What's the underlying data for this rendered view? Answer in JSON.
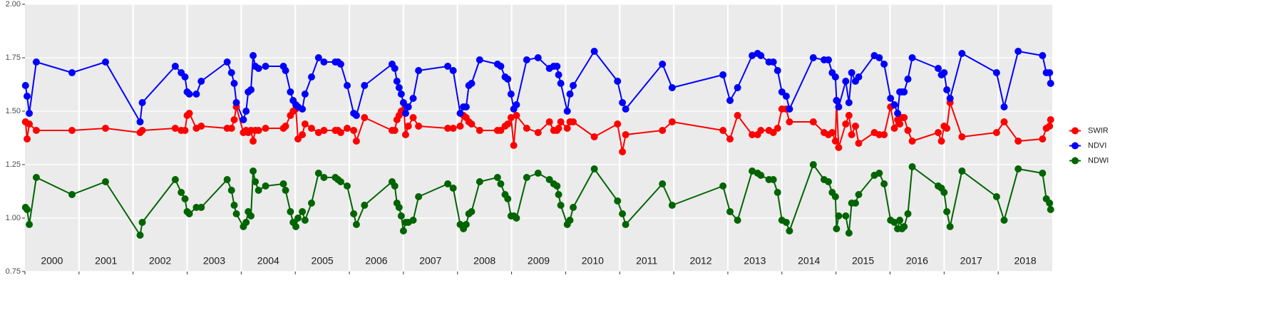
{
  "chart_data": {
    "type": "line",
    "x": [
      2000.01,
      2000.04,
      2000.08,
      2000.21,
      2000.87,
      2001.49,
      2002.13,
      2002.17,
      2002.78,
      2002.89,
      2002.96,
      2003.0,
      2003.04,
      2003.17,
      2003.26,
      2003.74,
      2003.82,
      2003.87,
      2003.91,
      2004.04,
      2004.09,
      2004.13,
      2004.18,
      2004.22,
      2004.26,
      2004.32,
      2004.45,
      2004.78,
      2004.82,
      2004.91,
      2004.96,
      2005.01,
      2005.05,
      2005.13,
      2005.18,
      2005.3,
      2005.43,
      2005.53,
      2005.74,
      2005.79,
      2005.84,
      2005.96,
      2006.08,
      2006.13,
      2006.28,
      2006.79,
      2006.84,
      2006.88,
      2006.92,
      2006.96,
      2007.0,
      2007.04,
      2007.09,
      2007.18,
      2007.28,
      2007.82,
      2007.92,
      2008.05,
      2008.11,
      2008.16,
      2008.21,
      2008.26,
      2008.41,
      2008.74,
      2008.8,
      2008.88,
      2008.93,
      2008.99,
      2009.04,
      2009.09,
      2009.28,
      2009.49,
      2009.7,
      2009.78,
      2009.84,
      2009.87,
      2009.91,
      2010.03,
      2010.08,
      2010.14,
      2010.53,
      2010.96,
      2011.05,
      2011.11,
      2011.79,
      2011.97,
      2012.91,
      2013.04,
      2013.18,
      2013.45,
      2013.55,
      2013.61,
      2013.76,
      2013.84,
      2013.92,
      2014.0,
      2014.08,
      2014.14,
      2014.58,
      2014.78,
      2014.86,
      2014.93,
      2014.99,
      2015.01,
      2015.05,
      2015.18,
      2015.24,
      2015.29,
      2015.36,
      2015.42,
      2015.71,
      2015.8,
      2015.89,
      2016.01,
      2016.08,
      2016.14,
      2016.18,
      2016.22,
      2016.26,
      2016.33,
      2016.41,
      2016.89,
      2016.95,
      2017.0,
      2017.05,
      2017.11,
      2017.33,
      2017.97,
      2018.11,
      2018.37,
      2018.82,
      2018.89,
      2018.95,
      2018.97
    ],
    "series": [
      {
        "name": "SWIR",
        "color": "#ff0000",
        "values": [
          1.45,
          1.37,
          1.44,
          1.41,
          1.41,
          1.42,
          1.4,
          1.41,
          1.42,
          1.41,
          1.41,
          1.48,
          1.49,
          1.42,
          1.43,
          1.42,
          1.42,
          1.46,
          1.52,
          1.4,
          1.41,
          1.4,
          1.41,
          1.36,
          1.41,
          1.41,
          1.42,
          1.42,
          1.43,
          1.48,
          1.5,
          1.51,
          1.37,
          1.39,
          1.44,
          1.42,
          1.4,
          1.41,
          1.41,
          1.41,
          1.4,
          1.42,
          1.41,
          1.36,
          1.47,
          1.41,
          1.41,
          1.46,
          1.48,
          1.5,
          1.54,
          1.39,
          1.43,
          1.47,
          1.43,
          1.42,
          1.42,
          1.43,
          1.48,
          1.47,
          1.45,
          1.44,
          1.41,
          1.41,
          1.41,
          1.43,
          1.44,
          1.47,
          1.34,
          1.48,
          1.42,
          1.4,
          1.45,
          1.41,
          1.41,
          1.42,
          1.45,
          1.42,
          1.45,
          1.45,
          1.38,
          1.44,
          1.31,
          1.39,
          1.41,
          1.45,
          1.41,
          1.37,
          1.48,
          1.39,
          1.39,
          1.41,
          1.41,
          1.4,
          1.42,
          1.51,
          1.51,
          1.45,
          1.45,
          1.4,
          1.39,
          1.4,
          1.36,
          1.55,
          1.33,
          1.44,
          1.48,
          1.39,
          1.43,
          1.35,
          1.4,
          1.39,
          1.39,
          1.52,
          1.42,
          1.46,
          1.44,
          1.47,
          1.47,
          1.41,
          1.36,
          1.4,
          1.36,
          1.43,
          1.42,
          1.54,
          1.38,
          1.4,
          1.45,
          1.36,
          1.37,
          1.42,
          1.43,
          1.46
        ]
      },
      {
        "name": "NDVI",
        "color": "#0000ff",
        "values": [
          1.62,
          1.57,
          1.49,
          1.73,
          1.68,
          1.73,
          1.45,
          1.54,
          1.71,
          1.68,
          1.66,
          1.59,
          1.58,
          1.58,
          1.64,
          1.73,
          1.68,
          1.63,
          1.54,
          1.46,
          1.5,
          1.59,
          1.6,
          1.76,
          1.71,
          1.7,
          1.71,
          1.71,
          1.69,
          1.59,
          1.55,
          1.53,
          1.52,
          1.51,
          1.58,
          1.66,
          1.75,
          1.73,
          1.73,
          1.73,
          1.72,
          1.62,
          1.49,
          1.48,
          1.62,
          1.72,
          1.7,
          1.64,
          1.61,
          1.58,
          1.54,
          1.49,
          1.52,
          1.56,
          1.69,
          1.71,
          1.69,
          1.49,
          1.52,
          1.52,
          1.62,
          1.63,
          1.74,
          1.72,
          1.71,
          1.66,
          1.65,
          1.58,
          1.51,
          1.53,
          1.74,
          1.75,
          1.7,
          1.71,
          1.71,
          1.67,
          1.63,
          1.5,
          1.58,
          1.62,
          1.78,
          1.64,
          1.54,
          1.51,
          1.72,
          1.61,
          1.67,
          1.55,
          1.61,
          1.76,
          1.77,
          1.76,
          1.73,
          1.73,
          1.69,
          1.59,
          1.57,
          1.51,
          1.75,
          1.74,
          1.74,
          1.68,
          1.66,
          1.55,
          1.52,
          1.64,
          1.54,
          1.68,
          1.64,
          1.66,
          1.76,
          1.75,
          1.72,
          1.56,
          1.53,
          1.49,
          1.59,
          1.59,
          1.59,
          1.65,
          1.75,
          1.7,
          1.67,
          1.68,
          1.6,
          1.56,
          1.77,
          1.68,
          1.52,
          1.78,
          1.76,
          1.68,
          1.68,
          1.63
        ]
      },
      {
        "name": "NDWI",
        "color": "#006400",
        "values": [
          1.05,
          1.04,
          0.97,
          1.19,
          1.11,
          1.17,
          0.92,
          0.98,
          1.18,
          1.12,
          1.09,
          1.03,
          1.02,
          1.05,
          1.05,
          1.18,
          1.13,
          1.06,
          1.02,
          0.96,
          0.98,
          1.03,
          1.01,
          1.22,
          1.17,
          1.13,
          1.15,
          1.16,
          1.13,
          1.03,
          0.98,
          0.96,
          1.0,
          1.03,
          0.99,
          1.07,
          1.21,
          1.19,
          1.19,
          1.18,
          1.17,
          1.15,
          1.02,
          0.97,
          1.06,
          1.17,
          1.15,
          1.07,
          1.05,
          1.01,
          0.94,
          0.98,
          0.98,
          0.99,
          1.1,
          1.16,
          1.14,
          0.97,
          0.95,
          0.97,
          1.02,
          1.03,
          1.17,
          1.19,
          1.16,
          1.11,
          1.09,
          1.01,
          1.01,
          1.0,
          1.19,
          1.21,
          1.18,
          1.16,
          1.15,
          1.11,
          1.06,
          0.97,
          0.99,
          1.05,
          1.23,
          1.08,
          1.02,
          0.97,
          1.16,
          1.06,
          1.15,
          1.03,
          0.99,
          1.22,
          1.21,
          1.2,
          1.18,
          1.18,
          1.12,
          0.99,
          0.98,
          0.94,
          1.25,
          1.18,
          1.17,
          1.12,
          1.1,
          0.95,
          1.01,
          1.01,
          0.93,
          1.07,
          1.07,
          1.11,
          1.2,
          1.21,
          1.16,
          0.99,
          0.98,
          0.95,
          0.99,
          0.95,
          0.96,
          1.02,
          1.24,
          1.15,
          1.14,
          1.12,
          1.03,
          0.96,
          1.22,
          1.1,
          0.99,
          1.23,
          1.21,
          1.09,
          1.07,
          1.04
        ]
      }
    ],
    "xlim": [
      2000,
      2019
    ],
    "xticks": [
      2000,
      2001,
      2002,
      2003,
      2004,
      2005,
      2006,
      2007,
      2008,
      2009,
      2010,
      2011,
      2012,
      2013,
      2014,
      2015,
      2016,
      2017,
      2018
    ],
    "year_labels": [
      "2000",
      "2001",
      "2002",
      "2003",
      "2004",
      "2005",
      "2006",
      "2007",
      "2008",
      "2009",
      "2010",
      "2011",
      "2012",
      "2013",
      "2014",
      "2015",
      "2016",
      "2017",
      "2018"
    ],
    "ylim": [
      0.75,
      2.0
    ],
    "yticks": [
      {
        "value": 0.75,
        "label": "0.75"
      },
      {
        "value": 1.0,
        "label": "1.00"
      },
      {
        "value": 1.25,
        "label": "1.25"
      },
      {
        "value": 1.5,
        "label": "1.50"
      },
      {
        "value": 1.75,
        "label": "1.75"
      },
      {
        "value": 2.0,
        "label": "2.00"
      }
    ],
    "grid": true,
    "legend": "right"
  }
}
